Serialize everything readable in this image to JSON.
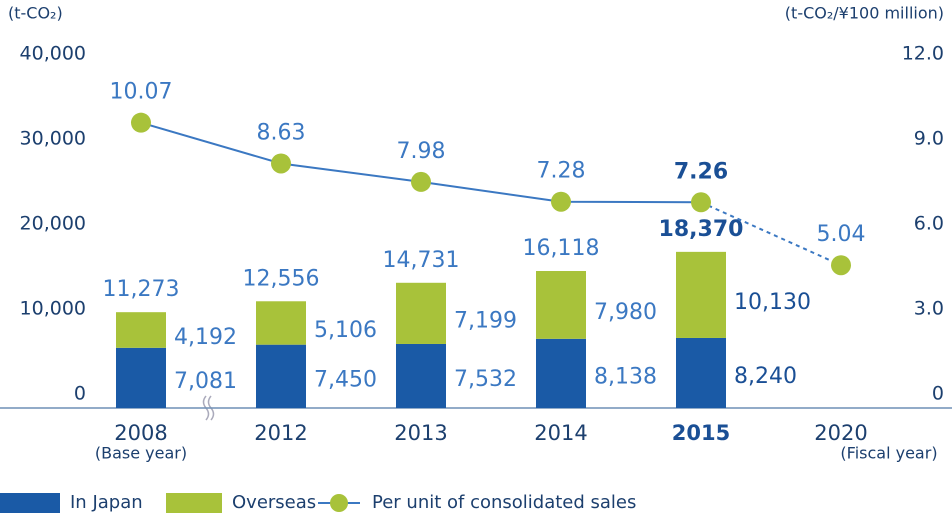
{
  "chart_data": {
    "type": "bar_line",
    "y_unit": "(t-CO₂)",
    "y2_unit": "(t-CO₂/¥100 million)",
    "categories": [
      "2008",
      "2012",
      "2013",
      "2014",
      "2015",
      "2020"
    ],
    "category_notes": [
      "(Base year)",
      null,
      null,
      null,
      null,
      "(Fiscal year)"
    ],
    "highlight_index": 4,
    "series": [
      {
        "name": "In Japan",
        "color": "#1a5aa6",
        "values": [
          7081,
          7450,
          7532,
          8138,
          8240,
          null
        ],
        "value_labels": [
          "7,081",
          "7,450",
          "7,532",
          "8,138",
          "8,240",
          null
        ]
      },
      {
        "name": "Overseas",
        "color": "#a8c23a",
        "values": [
          4192,
          5106,
          7199,
          7980,
          10130,
          null
        ],
        "value_labels": [
          "4,192",
          "5,106",
          "7,199",
          "7,980",
          "10,130",
          null
        ]
      },
      {
        "name": "Per unit of consolidated sales",
        "type": "line",
        "axis": "y2",
        "color": "#3b78c2",
        "marker_color": "#a8c23a",
        "values": [
          10.07,
          8.63,
          7.98,
          7.28,
          7.26,
          5.04
        ]
      }
    ],
    "totals": [
      11273,
      12556,
      14731,
      16118,
      18370,
      null
    ],
    "total_labels": [
      "11,273",
      "12,556",
      "14,731",
      "16,118",
      "18,370",
      null
    ],
    "ylim": [
      0,
      40000
    ],
    "yticks": [
      0,
      {
        "value": 10000,
        "label": "10,000"
      },
      {
        "value": 20000,
        "label": "20,000"
      },
      {
        "value": 30000,
        "label": "30,000"
      },
      {
        "value": 40000,
        "label": "40,000"
      }
    ],
    "y2lim": [
      0,
      12
    ],
    "y2ticks": [
      0,
      {
        "value": 3,
        "label": "3.0"
      },
      {
        "value": 6,
        "label": "6.0"
      },
      {
        "value": 9,
        "label": "9.0"
      },
      {
        "value": 12,
        "label": "12.0"
      }
    ]
  }
}
